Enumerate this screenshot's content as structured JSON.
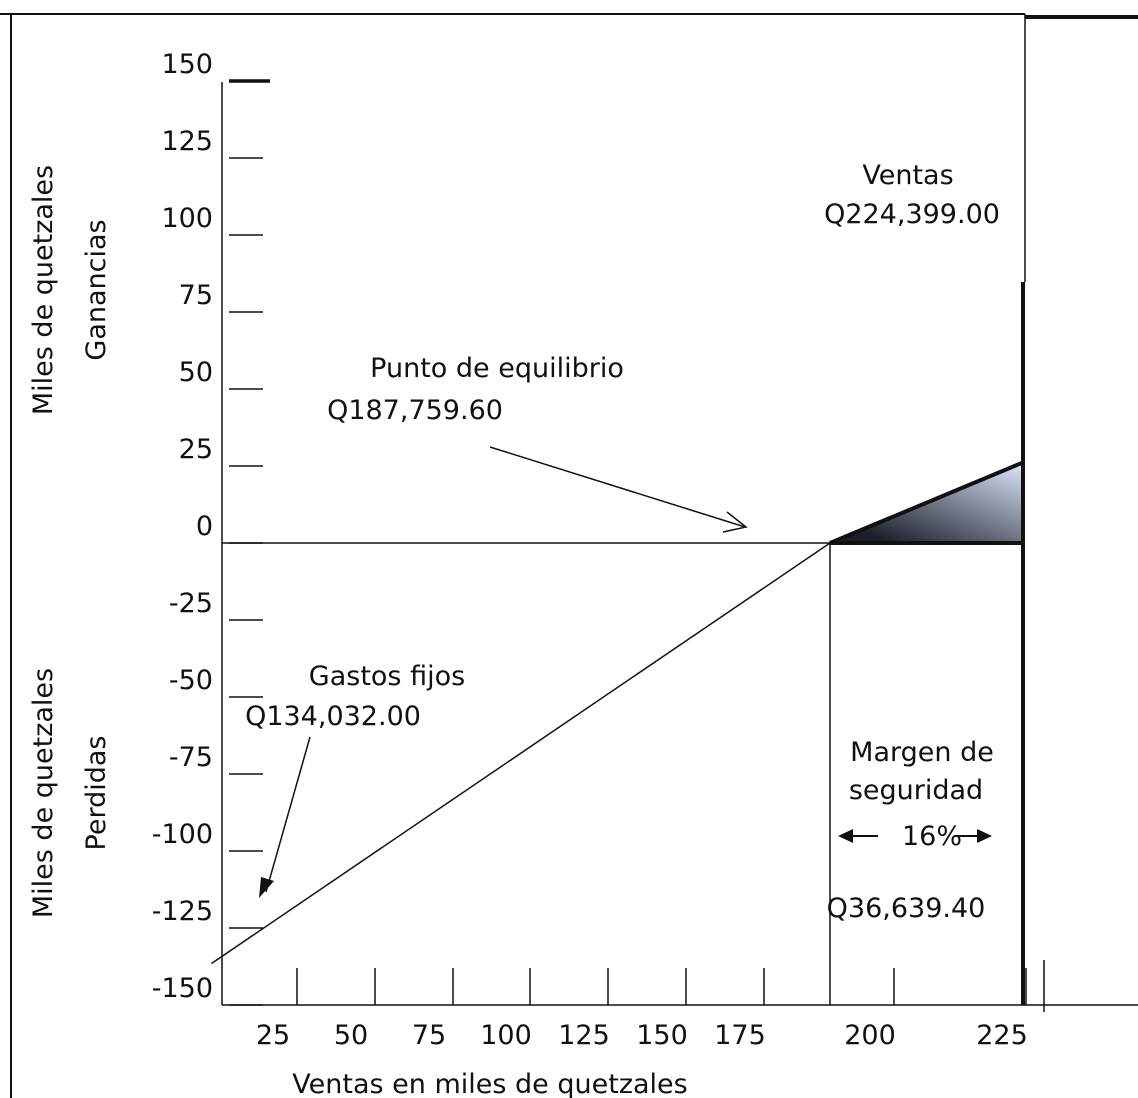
{
  "chart_data": {
    "type": "line",
    "title": "",
    "xlabel": "Ventas en miles de quetzales",
    "ylabel_top": [
      "Miles de quetzales",
      "Ganancias"
    ],
    "ylabel_bottom": [
      "Miles de quetzales",
      "Perdidas"
    ],
    "x_ticks": [
      25,
      50,
      75,
      100,
      125,
      150,
      175,
      200,
      225
    ],
    "y_ticks": [
      150,
      125,
      100,
      75,
      50,
      25,
      0,
      -25,
      -50,
      -75,
      -100,
      -125,
      -150
    ],
    "ylim": [
      -150,
      150
    ],
    "series": [
      {
        "x": [
          0,
          187.76
        ],
        "y": [
          -134.03,
          0
        ]
      },
      {
        "x": [
          187.76,
          224.4
        ],
        "y": [
          0,
          26.15
        ]
      }
    ],
    "breakeven_x": 187.76,
    "sales_x": 224.4,
    "annotations": {
      "ventas_label": "Ventas",
      "ventas_value": "Q224,399.00",
      "equilibrio_label": "Punto de equilibrio",
      "equilibrio_value": "Q187,759.60",
      "gastos_label": "Gastos fijos",
      "gastos_value": "Q134,032.00",
      "margen_label_1": "Margen de",
      "margen_label_2": "seguridad",
      "margen_pct": "16%",
      "margen_value": "Q36,639.40"
    },
    "colors": {
      "profit_fill_dark": "#1b1f2b",
      "profit_fill_light": "#dde6fb"
    }
  }
}
